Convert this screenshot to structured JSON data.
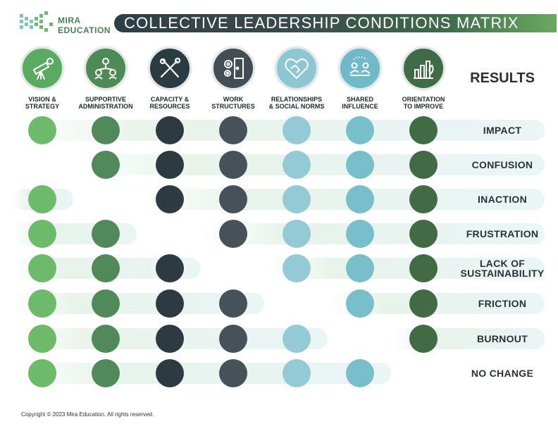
{
  "header": {
    "logo_text": "MIRA\nEDUCATION",
    "title": "COLLECTIVE LEADERSHIP CONDITIONS MATRIX"
  },
  "columns": [
    {
      "label": "VISION &\nSTRATEGY",
      "icon": "telescope-icon",
      "icon_bg": "#5aaa62",
      "dot_color": "#6dba6a"
    },
    {
      "label": "SUPPORTIVE\nADMINISTRATION",
      "icon": "people-network-icon",
      "icon_bg": "#4e8a55",
      "dot_color": "#52895a"
    },
    {
      "label": "CAPACITY &\nRESOURCES",
      "icon": "tools-icon",
      "icon_bg": "#2c3a42",
      "dot_color": "#2d3a42"
    },
    {
      "label": "WORK\nSTRUCTURES",
      "icon": "gears-door-icon",
      "icon_bg": "#434d56",
      "dot_color": "#47515a"
    },
    {
      "label": "RELATIONSHIPS\n& SOCIAL NORMS",
      "icon": "handshake-heart-icon",
      "icon_bg": "#8ec6d2",
      "dot_color": "#94cad5"
    },
    {
      "label": "SHARED\nINFLUENCE",
      "icon": "meeting-table-icon",
      "icon_bg": "#6fb9c9",
      "dot_color": "#78bfcb"
    },
    {
      "label": "ORIENTATION\nTO IMPROVE",
      "icon": "growth-chart-icon",
      "icon_bg": "#3f6b46",
      "dot_color": "#426a45"
    }
  ],
  "results_heading": "RESULTS",
  "rows": [
    {
      "result": "IMPACT",
      "missing": null
    },
    {
      "result": "CONFUSION",
      "missing": 0
    },
    {
      "result": "INACTION",
      "missing": 1
    },
    {
      "result": "FRUSTRATION",
      "missing": 2
    },
    {
      "result": "LACK OF\nSUSTAINABILITY",
      "missing": 3
    },
    {
      "result": "FRICTION",
      "missing": 4
    },
    {
      "result": "BURNOUT",
      "missing": 5
    },
    {
      "result": "NO CHANGE",
      "missing": 6
    }
  ],
  "footer": {
    "copyright": "Copyright © 2023 Mira Education. All rights reserved."
  }
}
